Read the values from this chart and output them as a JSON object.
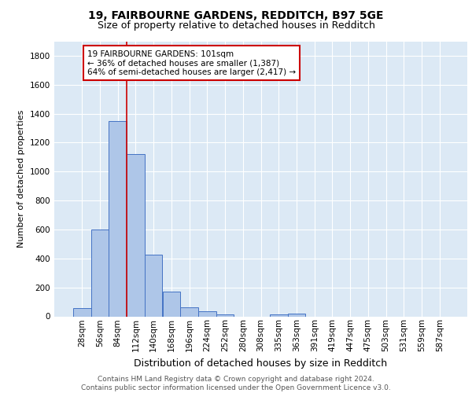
{
  "title1": "19, FAIRBOURNE GARDENS, REDDITCH, B97 5GE",
  "title2": "Size of property relative to detached houses in Redditch",
  "xlabel": "Distribution of detached houses by size in Redditch",
  "ylabel": "Number of detached properties",
  "bar_labels": [
    "28sqm",
    "56sqm",
    "84sqm",
    "112sqm",
    "140sqm",
    "168sqm",
    "196sqm",
    "224sqm",
    "252sqm",
    "280sqm",
    "308sqm",
    "335sqm",
    "363sqm",
    "391sqm",
    "419sqm",
    "447sqm",
    "475sqm",
    "503sqm",
    "531sqm",
    "559sqm",
    "587sqm"
  ],
  "bar_values": [
    57,
    600,
    1350,
    1120,
    425,
    170,
    60,
    38,
    12,
    0,
    0,
    15,
    20,
    0,
    0,
    0,
    0,
    0,
    0,
    0,
    0
  ],
  "bar_color": "#aec6e8",
  "bar_edge_color": "#4472c4",
  "vline_x_index": 2,
  "vline_color": "#cc0000",
  "annotation_text": "19 FAIRBOURNE GARDENS: 101sqm\n← 36% of detached houses are smaller (1,387)\n64% of semi-detached houses are larger (2,417) →",
  "annotation_box_color": "#ffffff",
  "annotation_box_edge": "#cc0000",
  "ylim": [
    0,
    1900
  ],
  "yticks": [
    0,
    200,
    400,
    600,
    800,
    1000,
    1200,
    1400,
    1600,
    1800
  ],
  "background_color": "#dce9f5",
  "footer": "Contains HM Land Registry data © Crown copyright and database right 2024.\nContains public sector information licensed under the Open Government Licence v3.0.",
  "title1_fontsize": 10,
  "title2_fontsize": 9,
  "xlabel_fontsize": 9,
  "ylabel_fontsize": 8,
  "tick_fontsize": 7.5,
  "footer_fontsize": 6.5,
  "ann_fontsize": 7.5
}
